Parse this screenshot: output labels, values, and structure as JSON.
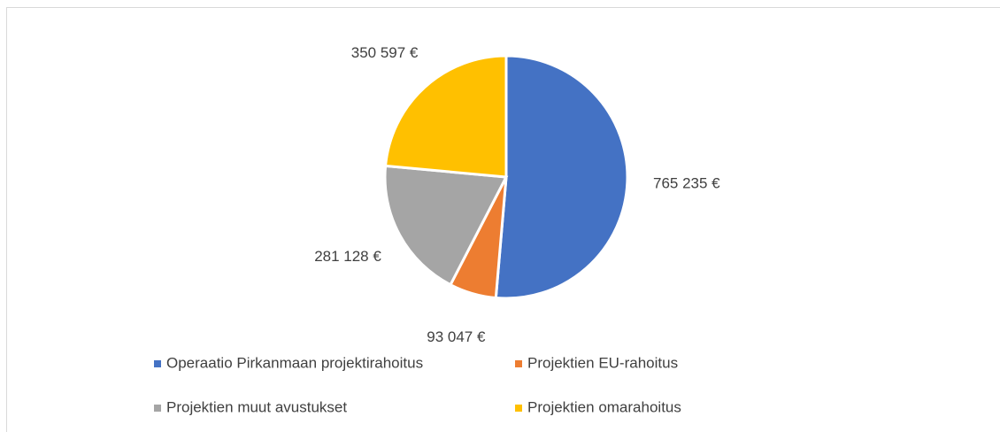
{
  "chart_data": {
    "type": "pie",
    "categories": [
      "Operaatio Pirkanmaan projektirahoitus",
      "Projektien EU-rahoitus",
      "Projektien muut avustukset",
      "Projektien omarahoitus"
    ],
    "values": [
      765235,
      93047,
      281128,
      350597
    ],
    "value_labels": [
      "765 235 €",
      "93 047 €",
      "281 128 €",
      "350 597 €"
    ],
    "colors": [
      "#4472c4",
      "#ed7d31",
      "#a5a5a5",
      "#ffc000"
    ]
  }
}
